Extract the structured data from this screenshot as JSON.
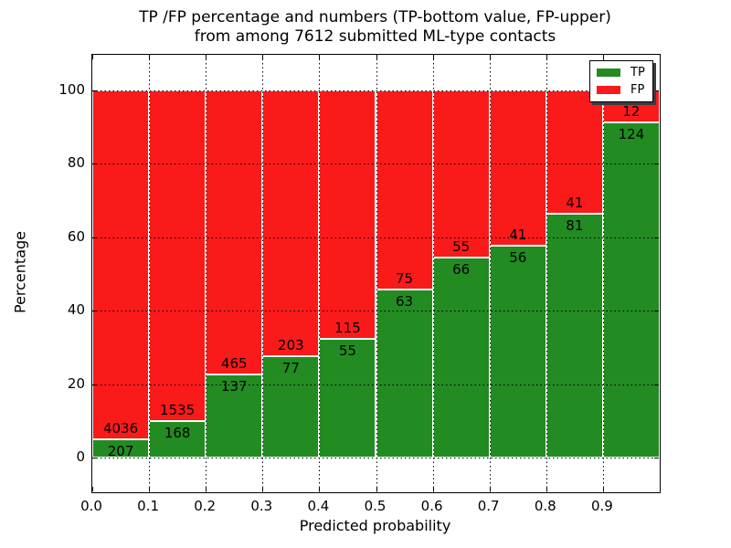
{
  "chart_data": {
    "type": "bar",
    "subtype": "stacked-percentage",
    "title_line1": "TP /FP percentage and numbers (TP-bottom value, FP-upper)",
    "title_line2": "from among 7612 submitted ML-type contacts",
    "xlabel": "Predicted probability",
    "ylabel": "Percentage",
    "total_contacts": 7612,
    "categories": [
      "0.0",
      "0.1",
      "0.2",
      "0.3",
      "0.4",
      "0.5",
      "0.6",
      "0.7",
      "0.8",
      "0.9"
    ],
    "bar_width": 0.1,
    "series": [
      {
        "name": "TP",
        "color": "#228b22",
        "counts": [
          207,
          168,
          137,
          77,
          55,
          63,
          66,
          56,
          81,
          124
        ]
      },
      {
        "name": "FP",
        "color": "#fa1a1a",
        "counts": [
          4036,
          1535,
          465,
          203,
          115,
          75,
          55,
          41,
          41,
          12
        ]
      }
    ],
    "stack_total_percent": 100,
    "xticks": [
      "0.0",
      "0.1",
      "0.2",
      "0.3",
      "0.4",
      "0.5",
      "0.6",
      "0.7",
      "0.8",
      "0.9"
    ],
    "yticks": [
      0,
      20,
      40,
      60,
      80,
      100
    ],
    "xlim": [
      0,
      1.0
    ],
    "ylim": [
      -9.7,
      110.2
    ],
    "grid": "dotted-black-both-axes",
    "bar_edge_color": "#ffffff",
    "legend": {
      "position": "upper right",
      "entries": [
        {
          "label": "TP",
          "color": "#228b22"
        },
        {
          "label": "FP",
          "color": "#fa1a1a"
        }
      ]
    }
  }
}
